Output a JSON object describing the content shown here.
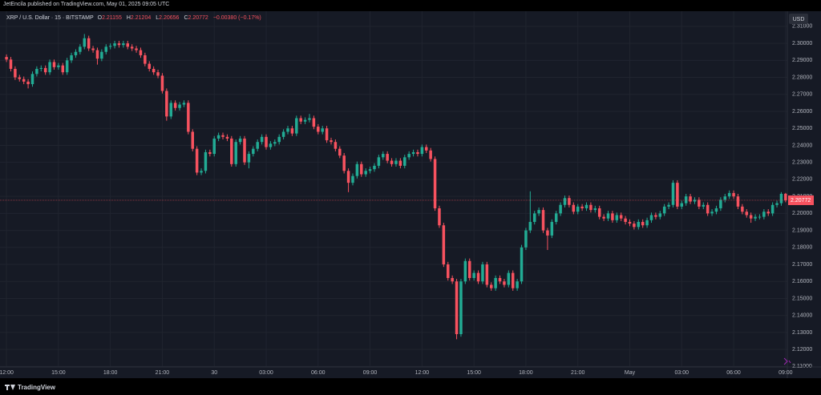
{
  "header": {
    "publisher": "JetEncila published on TradingView.com, May 01, 2025 09:05 UTC"
  },
  "footer": {
    "brand": "TradingView"
  },
  "chart_data": {
    "type": "candlestick",
    "title": "XRP / U.S. Dollar · 15 · BITSTAMP",
    "ohlc_keys": [
      "O",
      "H",
      "L",
      "C"
    ],
    "change": "−0.00380 (−0.17%)",
    "currency": "USD",
    "up_color": "#22ab94",
    "down_color": "#f7525f",
    "grid": true,
    "ylim": [
      2.1097,
      2.3189
    ],
    "xlim": [
      -1.5,
      180.4
    ],
    "yticks": [
      {
        "value": 2.11,
        "label": "2.11000"
      },
      {
        "value": 2.12,
        "label": "2.12000"
      },
      {
        "value": 2.13,
        "label": "2.13000"
      },
      {
        "value": 2.14,
        "label": "2.14000"
      },
      {
        "value": 2.15,
        "label": "2.15000"
      },
      {
        "value": 2.16,
        "label": "2.16000"
      },
      {
        "value": 2.17,
        "label": "2.17000"
      },
      {
        "value": 2.18,
        "label": "2.18000"
      },
      {
        "value": 2.19,
        "label": "2.19000"
      },
      {
        "value": 2.2,
        "label": "2.20000"
      },
      {
        "value": 2.21,
        "label": "2.21000"
      },
      {
        "value": 2.22,
        "label": "2.22000"
      },
      {
        "value": 2.23,
        "label": "2.23000"
      },
      {
        "value": 2.24,
        "label": "2.24000"
      },
      {
        "value": 2.25,
        "label": "2.25000"
      },
      {
        "value": 2.26,
        "label": "2.26000"
      },
      {
        "value": 2.27,
        "label": "2.27000"
      },
      {
        "value": 2.28,
        "label": "2.28000"
      },
      {
        "value": 2.29,
        "label": "2.29000"
      },
      {
        "value": 2.3,
        "label": "2.30000"
      },
      {
        "value": 2.31,
        "label": "2.31000"
      }
    ],
    "xticks": [
      {
        "value": 0,
        "label": "12:00"
      },
      {
        "value": 12,
        "label": "15:00"
      },
      {
        "value": 24,
        "label": "18:00"
      },
      {
        "value": 36,
        "label": "21:00"
      },
      {
        "value": 48,
        "label": "30"
      },
      {
        "value": 60,
        "label": "03:00"
      },
      {
        "value": 72,
        "label": "06:00"
      },
      {
        "value": 84,
        "label": "09:00"
      },
      {
        "value": 96,
        "label": "12:00"
      },
      {
        "value": 108,
        "label": "15:00"
      },
      {
        "value": 120,
        "label": "18:00"
      },
      {
        "value": 132,
        "label": "21:00"
      },
      {
        "value": 144,
        "label": "May"
      },
      {
        "value": 156,
        "label": "03:00"
      },
      {
        "value": 168,
        "label": "06:00"
      },
      {
        "value": 180,
        "label": "09:00"
      }
    ],
    "candles": [
      [
        2.292,
        2.2935,
        2.289,
        2.2905
      ],
      [
        2.2905,
        2.292,
        2.2835,
        2.285
      ],
      [
        2.285,
        2.2865,
        2.2785,
        2.28
      ],
      [
        2.28,
        2.2815,
        2.2775,
        2.279
      ],
      [
        2.279,
        2.2805,
        2.276,
        2.2775
      ],
      [
        2.2775,
        2.279,
        2.2735,
        2.276
      ],
      [
        2.276,
        2.2835,
        2.2745,
        2.282
      ],
      [
        2.282,
        2.2865,
        2.2805,
        2.285
      ],
      [
        2.285,
        2.287,
        2.2835,
        2.2855
      ],
      [
        2.2855,
        2.287,
        2.2815,
        2.283
      ],
      [
        2.283,
        2.2905,
        2.2815,
        2.289
      ],
      [
        2.289,
        2.2905,
        2.2845,
        2.286
      ],
      [
        2.286,
        2.2885,
        2.2845,
        2.287
      ],
      [
        2.287,
        2.2885,
        2.2815,
        2.283
      ],
      [
        2.283,
        2.2915,
        2.2815,
        2.29
      ],
      [
        2.29,
        2.2945,
        2.2885,
        2.293
      ],
      [
        2.293,
        2.2965,
        2.2915,
        2.295
      ],
      [
        2.295,
        2.2995,
        2.2935,
        2.298
      ],
      [
        2.298,
        2.3055,
        2.2965,
        2.303
      ],
      [
        2.303,
        2.3045,
        2.2955,
        2.297
      ],
      [
        2.297,
        2.2985,
        2.2945,
        2.296
      ],
      [
        2.296,
        2.2975,
        2.2875,
        2.291
      ],
      [
        2.291,
        2.2965,
        2.2895,
        2.295
      ],
      [
        2.295,
        2.2995,
        2.2935,
        2.298
      ],
      [
        2.298,
        2.3,
        2.2965,
        2.2985
      ],
      [
        2.2985,
        2.3015,
        2.297,
        2.3
      ],
      [
        2.3,
        2.3015,
        2.2975,
        2.299
      ],
      [
        2.299,
        2.3015,
        2.2975,
        2.3
      ],
      [
        2.3,
        2.3015,
        2.2965,
        2.298
      ],
      [
        2.298,
        2.2995,
        2.2955,
        2.297
      ],
      [
        2.297,
        2.2985,
        2.2945,
        2.296
      ],
      [
        2.296,
        2.2975,
        2.2915,
        2.293
      ],
      [
        2.293,
        2.2945,
        2.2865,
        2.288
      ],
      [
        2.288,
        2.2895,
        2.2835,
        2.285
      ],
      [
        2.285,
        2.2865,
        2.2815,
        2.283
      ],
      [
        2.283,
        2.2845,
        2.2795,
        2.281
      ],
      [
        2.281,
        2.2825,
        2.2705,
        2.272
      ],
      [
        2.272,
        2.2735,
        2.2545,
        2.257
      ],
      [
        2.257,
        2.2665,
        2.2555,
        2.265
      ],
      [
        2.265,
        2.2665,
        2.2605,
        2.262
      ],
      [
        2.262,
        2.2655,
        2.2605,
        2.264
      ],
      [
        2.264,
        2.2665,
        2.2625,
        2.265
      ],
      [
        2.265,
        2.2665,
        2.2465,
        2.248
      ],
      [
        2.248,
        2.2495,
        2.2365,
        2.238
      ],
      [
        2.238,
        2.2395,
        2.2225,
        2.224
      ],
      [
        2.224,
        2.2265,
        2.2225,
        2.225
      ],
      [
        2.225,
        2.2375,
        2.2235,
        2.236
      ],
      [
        2.236,
        2.2375,
        2.2335,
        2.235
      ],
      [
        2.235,
        2.2455,
        2.2335,
        2.244
      ],
      [
        2.244,
        2.2475,
        2.2425,
        2.246
      ],
      [
        2.246,
        2.2475,
        2.2435,
        2.245
      ],
      [
        2.245,
        2.2465,
        2.2425,
        2.244
      ],
      [
        2.244,
        2.2455,
        2.2275,
        2.229
      ],
      [
        2.229,
        2.2435,
        2.2275,
        2.242
      ],
      [
        2.242,
        2.2455,
        2.2405,
        2.244
      ],
      [
        2.244,
        2.2455,
        2.2285,
        2.23
      ],
      [
        2.23,
        2.2365,
        2.2265,
        2.235
      ],
      [
        2.235,
        2.2395,
        2.2335,
        2.238
      ],
      [
        2.238,
        2.2435,
        2.2365,
        2.242
      ],
      [
        2.242,
        2.2465,
        2.2405,
        2.245
      ],
      [
        2.245,
        2.2465,
        2.2375,
        2.239
      ],
      [
        2.239,
        2.2425,
        2.2375,
        2.241
      ],
      [
        2.241,
        2.2435,
        2.2395,
        2.242
      ],
      [
        2.242,
        2.2465,
        2.2405,
        2.245
      ],
      [
        2.245,
        2.2495,
        2.2435,
        2.248
      ],
      [
        2.248,
        2.2515,
        2.2465,
        2.25
      ],
      [
        2.25,
        2.2515,
        2.2455,
        2.247
      ],
      [
        2.247,
        2.2575,
        2.2455,
        2.256
      ],
      [
        2.256,
        2.2575,
        2.2525,
        2.254
      ],
      [
        2.254,
        2.2565,
        2.2525,
        2.255
      ],
      [
        2.255,
        2.2585,
        2.2535,
        2.256
      ],
      [
        2.256,
        2.2575,
        2.2495,
        2.251
      ],
      [
        2.251,
        2.2525,
        2.2465,
        2.248
      ],
      [
        2.248,
        2.2515,
        2.2465,
        2.25
      ],
      [
        2.25,
        2.2515,
        2.2415,
        2.243
      ],
      [
        2.243,
        2.2445,
        2.2405,
        2.242
      ],
      [
        2.242,
        2.2435,
        2.2365,
        2.238
      ],
      [
        2.238,
        2.2395,
        2.2325,
        2.234
      ],
      [
        2.234,
        2.2355,
        2.2235,
        2.225
      ],
      [
        2.225,
        2.2265,
        2.2125,
        2.218
      ],
      [
        2.218,
        2.2235,
        2.2165,
        2.222
      ],
      [
        2.222,
        2.2305,
        2.2205,
        2.229
      ],
      [
        2.229,
        2.2305,
        2.2215,
        2.223
      ],
      [
        2.223,
        2.2265,
        2.2215,
        2.225
      ],
      [
        2.225,
        2.2275,
        2.2235,
        2.226
      ],
      [
        2.226,
        2.2295,
        2.2245,
        2.228
      ],
      [
        2.228,
        2.2345,
        2.2265,
        2.233
      ],
      [
        2.233,
        2.2365,
        2.2315,
        2.235
      ],
      [
        2.235,
        2.2365,
        2.2295,
        2.231
      ],
      [
        2.231,
        2.2325,
        2.2275,
        2.229
      ],
      [
        2.229,
        2.2325,
        2.2275,
        2.231
      ],
      [
        2.231,
        2.2325,
        2.2265,
        2.228
      ],
      [
        2.228,
        2.2345,
        2.2265,
        2.233
      ],
      [
        2.233,
        2.2365,
        2.2315,
        2.235
      ],
      [
        2.235,
        2.2375,
        2.2335,
        2.236
      ],
      [
        2.236,
        2.2375,
        2.2335,
        2.235
      ],
      [
        2.235,
        2.2405,
        2.2335,
        2.239
      ],
      [
        2.239,
        2.2405,
        2.2355,
        2.237
      ],
      [
        2.237,
        2.2385,
        2.2305,
        2.232
      ],
      [
        2.232,
        2.2335,
        2.2015,
        2.203
      ],
      [
        2.203,
        2.2045,
        2.1915,
        2.193
      ],
      [
        2.193,
        2.1945,
        2.1685,
        2.17
      ],
      [
        2.17,
        2.1715,
        2.1605,
        2.162
      ],
      [
        2.162,
        2.1635,
        2.1585,
        2.16
      ],
      [
        2.16,
        2.1615,
        2.126,
        2.129
      ],
      [
        2.129,
        2.1615,
        2.1275,
        2.16
      ],
      [
        2.16,
        2.1735,
        2.1585,
        2.172
      ],
      [
        2.172,
        2.1735,
        2.1605,
        2.162
      ],
      [
        2.162,
        2.1665,
        2.1605,
        2.165
      ],
      [
        2.165,
        2.1665,
        2.1585,
        2.16
      ],
      [
        2.16,
        2.1715,
        2.1585,
        2.17
      ],
      [
        2.17,
        2.1715,
        2.1565,
        2.158
      ],
      [
        2.158,
        2.1595,
        2.1545,
        2.156
      ],
      [
        2.156,
        2.1635,
        2.1545,
        2.162
      ],
      [
        2.162,
        2.1635,
        2.1585,
        2.16
      ],
      [
        2.16,
        2.1615,
        2.1565,
        2.158
      ],
      [
        2.158,
        2.1665,
        2.1565,
        2.165
      ],
      [
        2.165,
        2.1665,
        2.1545,
        2.156
      ],
      [
        2.156,
        2.1615,
        2.1545,
        2.16
      ],
      [
        2.16,
        2.1815,
        2.1585,
        2.18
      ],
      [
        2.18,
        2.1915,
        2.1785,
        2.19
      ],
      [
        2.19,
        2.213,
        2.1885,
        2.195
      ],
      [
        2.195,
        2.2015,
        2.1935,
        2.2
      ],
      [
        2.2,
        2.2035,
        2.1985,
        2.202
      ],
      [
        2.202,
        2.2035,
        2.1885,
        2.19
      ],
      [
        2.19,
        2.1915,
        2.1785,
        2.187
      ],
      [
        2.187,
        2.1965,
        2.1855,
        2.195
      ],
      [
        2.195,
        2.2015,
        2.1935,
        2.2
      ],
      [
        2.2,
        2.2065,
        2.1985,
        2.205
      ],
      [
        2.205,
        2.2105,
        2.2035,
        2.209
      ],
      [
        2.209,
        2.2105,
        2.2035,
        2.205
      ],
      [
        2.205,
        2.2065,
        2.1995,
        2.201
      ],
      [
        2.201,
        2.2055,
        2.1995,
        2.204
      ],
      [
        2.204,
        2.2055,
        2.2015,
        2.203
      ],
      [
        2.203,
        2.2065,
        2.2015,
        2.205
      ],
      [
        2.205,
        2.2065,
        2.2005,
        2.202
      ],
      [
        2.202,
        2.2045,
        2.2005,
        2.203
      ],
      [
        2.203,
        2.2045,
        2.1965,
        2.198
      ],
      [
        2.198,
        2.1995,
        2.1955,
        2.197
      ],
      [
        2.197,
        2.2015,
        2.1955,
        2.2
      ],
      [
        2.2,
        2.2015,
        2.1945,
        2.196
      ],
      [
        2.196,
        2.2005,
        2.1945,
        2.199
      ],
      [
        2.199,
        2.2005,
        2.1955,
        2.197
      ],
      [
        2.197,
        2.1985,
        2.1935,
        2.195
      ],
      [
        2.195,
        2.1965,
        2.1925,
        2.194
      ],
      [
        2.194,
        2.1955,
        2.1905,
        2.192
      ],
      [
        2.192,
        2.1965,
        2.1905,
        2.195
      ],
      [
        2.195,
        2.1965,
        2.1915,
        2.193
      ],
      [
        2.193,
        2.1975,
        2.1915,
        2.196
      ],
      [
        2.196,
        2.2005,
        2.1945,
        2.199
      ],
      [
        2.199,
        2.2005,
        2.1965,
        2.198
      ],
      [
        2.198,
        2.2015,
        2.1965,
        2.2
      ],
      [
        2.2,
        2.2055,
        2.1985,
        2.204
      ],
      [
        2.204,
        2.2065,
        2.2025,
        2.205
      ],
      [
        2.205,
        2.2195,
        2.2035,
        2.218
      ],
      [
        2.218,
        2.2195,
        2.2025,
        2.204
      ],
      [
        2.204,
        2.2075,
        2.2025,
        2.206
      ],
      [
        2.206,
        2.2115,
        2.2045,
        2.21
      ],
      [
        2.21,
        2.2115,
        2.2055,
        2.207
      ],
      [
        2.207,
        2.2095,
        2.2055,
        2.208
      ],
      [
        2.208,
        2.2095,
        2.2025,
        2.204
      ],
      [
        2.204,
        2.2065,
        2.2025,
        2.205
      ],
      [
        2.205,
        2.2065,
        2.1985,
        2.2
      ],
      [
        2.2,
        2.2025,
        2.1985,
        2.201
      ],
      [
        2.201,
        2.2045,
        2.1995,
        2.203
      ],
      [
        2.203,
        2.2095,
        2.2015,
        2.208
      ],
      [
        2.208,
        2.2115,
        2.2065,
        2.21
      ],
      [
        2.21,
        2.2135,
        2.2085,
        2.212
      ],
      [
        2.212,
        2.2135,
        2.2085,
        2.21
      ],
      [
        2.21,
        2.2115,
        2.2025,
        2.204
      ],
      [
        2.204,
        2.2055,
        2.1995,
        2.201
      ],
      [
        2.201,
        2.2025,
        2.1975,
        2.199
      ],
      [
        2.199,
        2.2005,
        2.1945,
        2.197
      ],
      [
        2.197,
        2.1995,
        2.1955,
        2.198
      ],
      [
        2.198,
        2.1995,
        2.1965,
        2.198
      ],
      [
        2.198,
        2.2025,
        2.1965,
        2.201
      ],
      [
        2.201,
        2.2025,
        2.1985,
        2.2
      ],
      [
        2.2,
        2.2065,
        2.1985,
        2.205
      ],
      [
        2.205,
        2.2075,
        2.2035,
        2.206
      ],
      [
        2.206,
        2.2125,
        2.2045,
        2.2115
      ],
      [
        2.21155,
        2.21204,
        2.20656,
        2.20772
      ]
    ]
  }
}
